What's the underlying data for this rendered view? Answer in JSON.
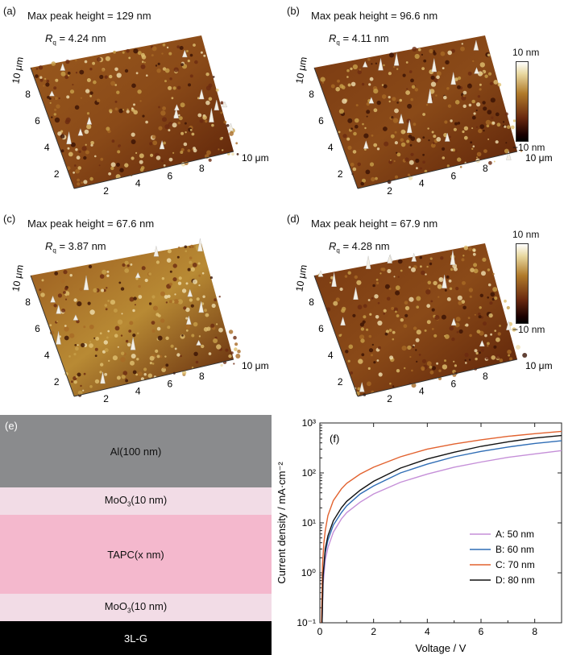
{
  "panels": [
    {
      "label": "(a)",
      "title": "Max peak height = 129 nm",
      "rq_symbol": "R",
      "rq_sub": "q",
      "rq_value": "= 4.24 nm",
      "y_ticks": [
        "2",
        "4",
        "6",
        "8",
        "10 μm"
      ],
      "x_ticks": [
        "2",
        "4",
        "6",
        "8",
        "10 μm"
      ]
    },
    {
      "label": "(b)",
      "title": "Max peak height = 96.6 nm",
      "rq_symbol": "R",
      "rq_sub": "q",
      "rq_value": "= 4.11 nm",
      "y_ticks": [
        "2",
        "4",
        "6",
        "8",
        "10 μm"
      ],
      "x_ticks": [
        "2",
        "4",
        "6",
        "8",
        "10 μm"
      ]
    },
    {
      "label": "(c)",
      "title": "Max peak height = 67.6 nm",
      "rq_symbol": "R",
      "rq_sub": "q",
      "rq_value": "= 3.87 nm",
      "y_ticks": [
        "2",
        "4",
        "6",
        "8",
        "10 μm"
      ],
      "x_ticks": [
        "2",
        "4",
        "6",
        "8",
        "10 μm"
      ]
    },
    {
      "label": "(d)",
      "title": "Max peak height = 67.9 nm",
      "rq_symbol": "R",
      "rq_sub": "q",
      "rq_value": "= 4.28 nm",
      "y_ticks": [
        "2",
        "4",
        "6",
        "8",
        "10 μm"
      ],
      "x_ticks": [
        "2",
        "4",
        "6",
        "8",
        "10 μm"
      ]
    }
  ],
  "colorbar": {
    "top": "10 nm",
    "bottom": "−10 nm"
  },
  "device": {
    "label": "(e)",
    "layers": [
      {
        "text": "Al(100 nm)",
        "color": "#8a8b8d",
        "text_color": "#111111"
      },
      {
        "text": "MoO",
        "sub": "3",
        "tail": "(10 nm)",
        "color": "#f2dce6",
        "text_color": "#111111"
      },
      {
        "text": "TAPC(x nm)",
        "color": "#f4b8cd",
        "text_color": "#111111"
      },
      {
        "text": "MoO",
        "sub": "3",
        "tail": "(10 nm)",
        "color": "#f2dce6",
        "text_color": "#111111"
      },
      {
        "text": "3L-G",
        "color": "#000000",
        "text_color": "#ffffff"
      }
    ]
  },
  "chart_data": {
    "type": "line",
    "panel_label": "(f)",
    "title": "",
    "xlabel": "Voltage / V",
    "ylabel": "Current density / mA·cm⁻²",
    "xlim": [
      0,
      9
    ],
    "ylim": [
      0.1,
      1000
    ],
    "yscale": "log",
    "x_ticks": [
      "0",
      "2",
      "4",
      "6",
      "8"
    ],
    "y_ticks": [
      "10⁻¹",
      "10⁰",
      "10¹",
      "10²",
      "10³"
    ],
    "legend_position": "bottom-right",
    "series": [
      {
        "name": "A: 50 nm",
        "color": "#c58fd8",
        "x": [
          0.08,
          0.12,
          0.2,
          0.3,
          0.5,
          0.8,
          1.0,
          1.5,
          2,
          3,
          4,
          5,
          6,
          7,
          8,
          9
        ],
        "y": [
          0.1,
          0.6,
          1.8,
          3.2,
          6.5,
          12,
          16,
          26,
          38,
          65,
          95,
          130,
          165,
          205,
          240,
          280
        ]
      },
      {
        "name": "B: 60 nm",
        "color": "#2f6db5",
        "x": [
          0.08,
          0.12,
          0.2,
          0.3,
          0.5,
          0.8,
          1.0,
          1.5,
          2,
          3,
          4,
          5,
          6,
          7,
          8,
          9
        ],
        "y": [
          0.1,
          0.8,
          2.5,
          4.5,
          9,
          16,
          22,
          38,
          55,
          100,
          150,
          210,
          270,
          330,
          390,
          440
        ]
      },
      {
        "name": "C: 70 nm",
        "color": "#e2622f",
        "x": [
          0.06,
          0.1,
          0.15,
          0.2,
          0.3,
          0.5,
          0.8,
          1.0,
          1.5,
          2,
          3,
          4,
          5,
          6,
          7,
          8,
          9
        ],
        "y": [
          0.1,
          1.5,
          4,
          7,
          14,
          28,
          48,
          62,
          95,
          130,
          210,
          300,
          380,
          460,
          540,
          610,
          680
        ]
      },
      {
        "name": "D: 80 nm",
        "color": "#111111",
        "x": [
          0.08,
          0.12,
          0.2,
          0.3,
          0.5,
          0.8,
          1.0,
          1.5,
          2,
          3,
          4,
          5,
          6,
          7,
          8,
          9
        ],
        "y": [
          0.1,
          0.9,
          3,
          5.5,
          11,
          20,
          27,
          45,
          68,
          125,
          190,
          260,
          340,
          420,
          500,
          560
        ]
      }
    ]
  }
}
